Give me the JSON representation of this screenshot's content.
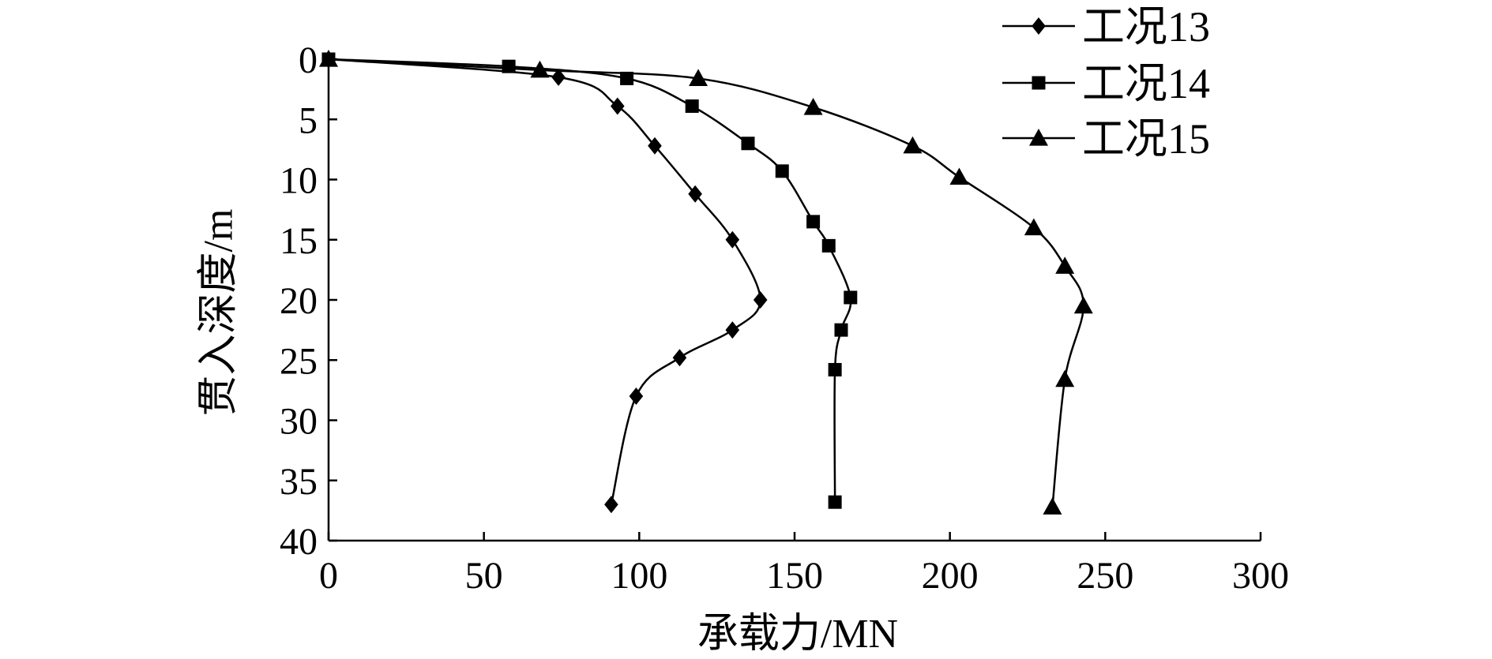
{
  "chart_data": {
    "type": "line",
    "xlabel": "承载力/MN",
    "ylabel": "贯入深度/m",
    "xlim": [
      0,
      300
    ],
    "ylim": [
      0,
      40
    ],
    "y_axis_inverted": true,
    "xticks": [
      0,
      50,
      100,
      150,
      200,
      250,
      300
    ],
    "yticks": [
      0,
      5,
      10,
      15,
      20,
      25,
      30,
      35,
      40
    ],
    "grid": false,
    "legend_position": "top-right",
    "series": [
      {
        "name": "工况13",
        "marker": "diamond",
        "points": [
          [
            0,
            0
          ],
          [
            74,
            1.5
          ],
          [
            93,
            3.9
          ],
          [
            105,
            7.2
          ],
          [
            118,
            11.2
          ],
          [
            130,
            15
          ],
          [
            139,
            20
          ],
          [
            130,
            22.5
          ],
          [
            113,
            24.8
          ],
          [
            99,
            28
          ],
          [
            91,
            37
          ]
        ]
      },
      {
        "name": "工况14",
        "marker": "square",
        "points": [
          [
            0,
            0
          ],
          [
            58,
            0.6
          ],
          [
            96,
            1.6
          ],
          [
            117,
            3.9
          ],
          [
            135,
            7
          ],
          [
            146,
            9.3
          ],
          [
            156,
            13.5
          ],
          [
            161,
            15.5
          ],
          [
            168,
            19.8
          ],
          [
            165,
            22.5
          ],
          [
            163,
            25.8
          ],
          [
            163,
            36.8
          ]
        ]
      },
      {
        "name": "工况15",
        "marker": "triangle",
        "points": [
          [
            0,
            0
          ],
          [
            68,
            0.9
          ],
          [
            119,
            1.6
          ],
          [
            156,
            4
          ],
          [
            188,
            7.2
          ],
          [
            203,
            9.8
          ],
          [
            227,
            14
          ],
          [
            237,
            17.2
          ],
          [
            243,
            20.5
          ],
          [
            237,
            26.6
          ],
          [
            233,
            37.2
          ]
        ]
      }
    ]
  },
  "colors": {
    "line": "#000000",
    "background": "#ffffff"
  }
}
